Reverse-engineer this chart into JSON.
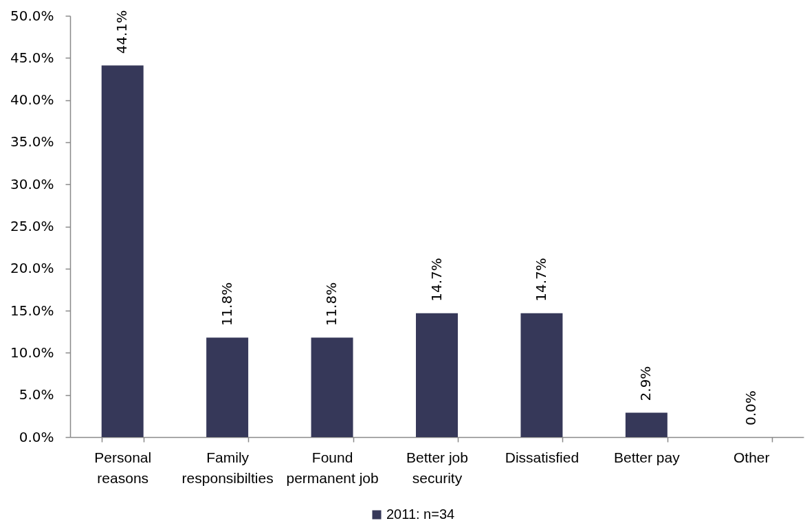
{
  "chart_data": {
    "type": "bar",
    "categories": [
      "Personal reasons",
      "Family responsibilties",
      "Found permanent job",
      "Better job security",
      "Dissatisfied",
      "Better pay",
      "Other"
    ],
    "series": [
      {
        "name": "2011: n=34",
        "color": "#363859",
        "values": [
          44.1,
          11.8,
          11.8,
          14.7,
          14.7,
          2.9,
          0.0
        ],
        "value_labels": [
          "44.1%",
          "11.8%",
          "11.8%",
          "14.7%",
          "14.7%",
          "2.9%",
          "0.0%"
        ]
      }
    ],
    "ylim": [
      0,
      50
    ],
    "yticks": [
      {
        "value": 0,
        "label": "0.0%"
      },
      {
        "value": 5,
        "label": "5.0%"
      },
      {
        "value": 10,
        "label": "10.0%"
      },
      {
        "value": 15,
        "label": "15.0%"
      },
      {
        "value": 20,
        "label": "20.0%"
      },
      {
        "value": 25,
        "label": "25.0%"
      },
      {
        "value": 30,
        "label": "30.0%"
      },
      {
        "value": 35,
        "label": "35.0%"
      },
      {
        "value": 40,
        "label": "40.0%"
      },
      {
        "value": 45,
        "label": "45.0%"
      },
      {
        "value": 50,
        "label": "50.0%"
      }
    ],
    "legend": "bottom"
  }
}
